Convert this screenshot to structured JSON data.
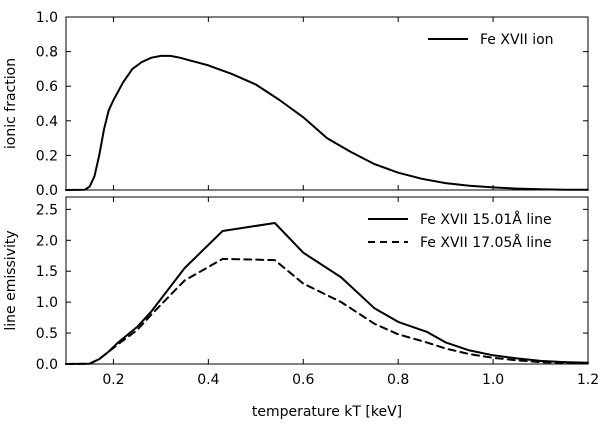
{
  "chart_data": [
    {
      "type": "line",
      "ylabel": "ionic fraction",
      "xlim": [
        0.1,
        1.2
      ],
      "ylim": [
        0.0,
        1.0
      ],
      "yticks": [
        {
          "value": 0.0,
          "label": "0.0"
        },
        {
          "value": 0.2,
          "label": "0.2"
        },
        {
          "value": 0.4,
          "label": "0.4"
        },
        {
          "value": 0.6,
          "label": "0.6"
        },
        {
          "value": 0.8,
          "label": "0.8"
        },
        {
          "value": 1.0,
          "label": "1.0"
        }
      ],
      "grid": false,
      "legend_position": "top-right",
      "series": [
        {
          "name": "Fe XVII ion",
          "style": "solid",
          "color": "#000000",
          "x": [
            0.1,
            0.14,
            0.15,
            0.16,
            0.17,
            0.18,
            0.19,
            0.2,
            0.22,
            0.24,
            0.26,
            0.28,
            0.3,
            0.32,
            0.34,
            0.36,
            0.38,
            0.4,
            0.45,
            0.5,
            0.55,
            0.6,
            0.65,
            0.7,
            0.75,
            0.8,
            0.85,
            0.9,
            0.95,
            1.0,
            1.05,
            1.1,
            1.15,
            1.2
          ],
          "y": [
            0.0,
            0.002,
            0.02,
            0.08,
            0.2,
            0.35,
            0.46,
            0.52,
            0.62,
            0.7,
            0.74,
            0.765,
            0.775,
            0.775,
            0.765,
            0.75,
            0.735,
            0.72,
            0.67,
            0.61,
            0.52,
            0.42,
            0.3,
            0.22,
            0.15,
            0.1,
            0.065,
            0.04,
            0.025,
            0.015,
            0.008,
            0.004,
            0.002,
            0.001
          ]
        }
      ]
    },
    {
      "type": "line",
      "xlabel": "temperature kT [keV]",
      "ylabel": "line emissivity",
      "xlim": [
        0.1,
        1.2
      ],
      "ylim": [
        0.0,
        2.7
      ],
      "xticks": [
        {
          "value": 0.2,
          "label": "0.2"
        },
        {
          "value": 0.4,
          "label": "0.4"
        },
        {
          "value": 0.6,
          "label": "0.6"
        },
        {
          "value": 0.8,
          "label": "0.8"
        },
        {
          "value": 1.0,
          "label": "1.0"
        },
        {
          "value": 1.2,
          "label": "1.2"
        }
      ],
      "yticks": [
        {
          "value": 0.0,
          "label": "0.0"
        },
        {
          "value": 0.5,
          "label": "0.5"
        },
        {
          "value": 1.0,
          "label": "1.0"
        },
        {
          "value": 1.5,
          "label": "1.5"
        },
        {
          "value": 2.0,
          "label": "2.0"
        },
        {
          "value": 2.5,
          "label": "2.5"
        }
      ],
      "grid": false,
      "legend_position": "top-right",
      "series": [
        {
          "name": "Fe XVII 15.01Å line",
          "style": "solid",
          "color": "#000000",
          "x": [
            0.1,
            0.15,
            0.17,
            0.19,
            0.21,
            0.25,
            0.28,
            0.35,
            0.43,
            0.54,
            0.6,
            0.68,
            0.75,
            0.8,
            0.86,
            0.9,
            0.95,
            1.0,
            1.05,
            1.1,
            1.15,
            1.2
          ],
          "y": [
            0.0,
            0.005,
            0.08,
            0.2,
            0.35,
            0.6,
            0.85,
            1.55,
            2.15,
            2.28,
            1.8,
            1.4,
            0.9,
            0.68,
            0.52,
            0.35,
            0.22,
            0.14,
            0.09,
            0.05,
            0.03,
            0.02
          ]
        },
        {
          "name": "Fe XVII 17.05Å line",
          "style": "dashed",
          "color": "#000000",
          "x": [
            0.1,
            0.15,
            0.17,
            0.19,
            0.21,
            0.25,
            0.28,
            0.35,
            0.43,
            0.54,
            0.6,
            0.68,
            0.75,
            0.8,
            0.86,
            0.9,
            0.95,
            1.0,
            1.05,
            1.1,
            1.15,
            1.2
          ],
          "y": [
            0.0,
            0.005,
            0.08,
            0.2,
            0.32,
            0.55,
            0.8,
            1.35,
            1.7,
            1.68,
            1.3,
            1.0,
            0.65,
            0.48,
            0.35,
            0.25,
            0.16,
            0.1,
            0.06,
            0.03,
            0.02,
            0.01
          ]
        }
      ]
    }
  ]
}
